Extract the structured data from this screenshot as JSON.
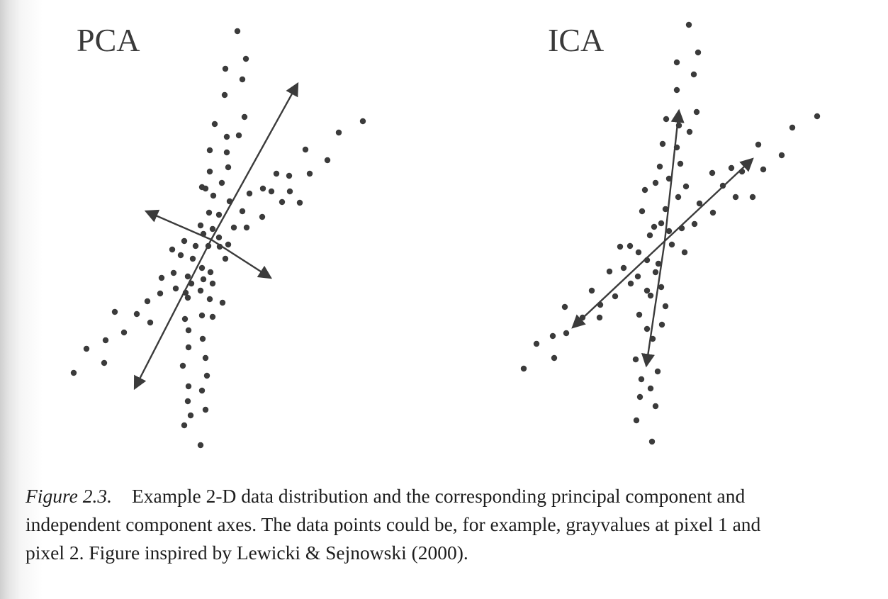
{
  "figure": {
    "number_label": "Figure 2.3.",
    "caption_lines": [
      "Example 2-D data distribution and the corresponding principal component and",
      "independent component axes. The data points could be, for example, grayvalues at pixel 1 and",
      "pixel 2. Figure inspired by Lewicki & Sejnowski (2000)."
    ]
  },
  "panels": [
    {
      "id": "pca",
      "title": "PCA"
    },
    {
      "id": "ica",
      "title": "ICA"
    }
  ]
}
